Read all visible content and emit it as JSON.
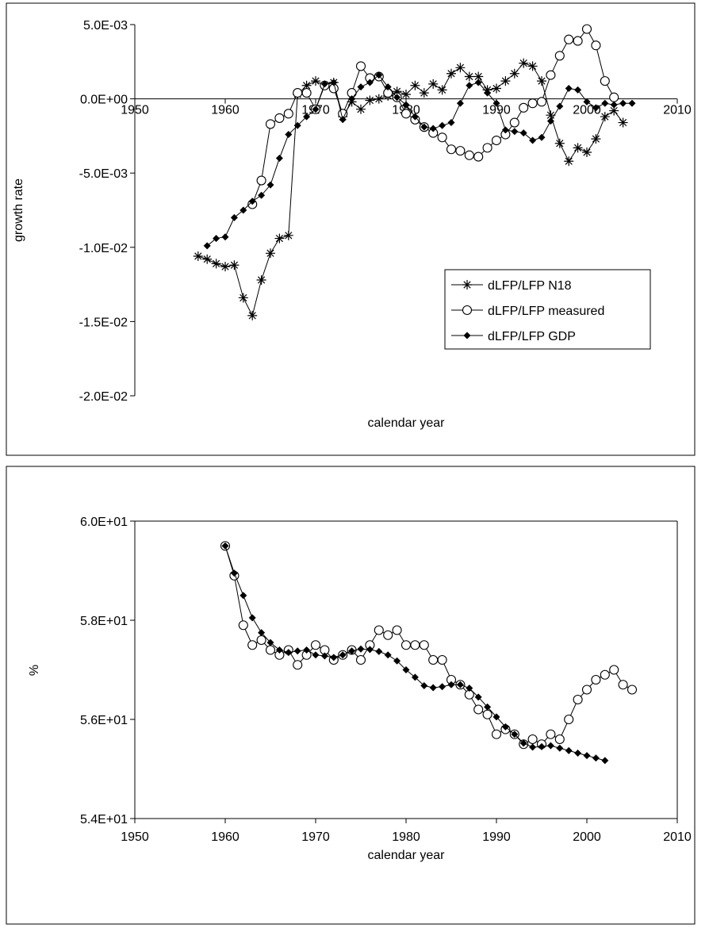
{
  "chart_data": [
    {
      "type": "line",
      "title": "",
      "xlabel": "calendar year",
      "ylabel": "growth rate",
      "xlim": [
        1950,
        2010
      ],
      "ylim": [
        -0.02,
        0.005
      ],
      "xticks": [
        "1950",
        "1960",
        "1970",
        "1980",
        "1990",
        "2000",
        "2010"
      ],
      "yticks": [
        "5.0E-03",
        "0.0E+00",
        "-5.0E-03",
        "-1.0E-02",
        "-1.5E-02",
        "-2.0E-02"
      ],
      "grid": false,
      "legend_position": "lower-right",
      "series": [
        {
          "name": "dLFP/LFP N18",
          "marker": "star",
          "x": [
            1957,
            1958,
            1959,
            1960,
            1961,
            1962,
            1963,
            1964,
            1965,
            1966,
            1967,
            1968,
            1969,
            1970,
            1971,
            1972,
            1973,
            1974,
            1975,
            1976,
            1977,
            1978,
            1979,
            1980,
            1981,
            1982,
            1983,
            1984,
            1985,
            1986,
            1987,
            1988,
            1989,
            1990,
            1991,
            1992,
            1993,
            1994,
            1995,
            1996,
            1997,
            1998,
            1999,
            2000,
            2001,
            2002,
            2003,
            2004
          ],
          "y": [
            -0.0106,
            -0.0108,
            -0.0111,
            -0.0113,
            -0.0112,
            -0.0134,
            -0.0146,
            -0.0122,
            -0.0104,
            -0.0094,
            -0.0092,
            0.0003,
            0.0009,
            0.0012,
            0.0009,
            0.0011,
            -0.0012,
            -0.0002,
            -0.0007,
            -0.0001,
            0.0,
            0.0002,
            0.0005,
            0.0003,
            0.0009,
            0.0004,
            0.001,
            0.0006,
            0.0017,
            0.0021,
            0.0015,
            0.0015,
            0.0006,
            0.0007,
            0.0012,
            0.0017,
            0.0024,
            0.0022,
            0.0012,
            -0.0011,
            -0.003,
            -0.0042,
            -0.0033,
            -0.0036,
            -0.0027,
            -0.0012,
            -0.0008,
            -0.0016
          ]
        },
        {
          "name": "dLFP/LFP measured",
          "marker": "open-circle",
          "x": [
            1963,
            1964,
            1965,
            1966,
            1967,
            1968,
            1969,
            1970,
            1971,
            1972,
            1973,
            1974,
            1975,
            1976,
            1977,
            1978,
            1979,
            1980,
            1981,
            1982,
            1983,
            1984,
            1985,
            1986,
            1987,
            1988,
            1989,
            1990,
            1991,
            1992,
            1993,
            1994,
            1995,
            1996,
            1997,
            1998,
            1999,
            2000,
            2001,
            2002,
            2003
          ],
          "y": [
            -0.0071,
            -0.0055,
            -0.0017,
            -0.0013,
            -0.001,
            0.0004,
            0.0004,
            -0.0007,
            0.0009,
            0.0007,
            -0.001,
            0.0004,
            0.0022,
            0.0014,
            0.0015,
            0.0004,
            0.0001,
            -0.001,
            -0.0014,
            -0.0019,
            -0.0023,
            -0.0026,
            -0.0034,
            -0.0035,
            -0.0038,
            -0.0039,
            -0.0033,
            -0.0028,
            -0.0024,
            -0.0016,
            -0.0006,
            -0.0003,
            -0.0002,
            0.0016,
            0.0029,
            0.004,
            0.0039,
            0.0047,
            0.0036,
            0.0012,
            0.0001
          ]
        },
        {
          "name": "dLFP/LFP GDP",
          "marker": "filled-diamond",
          "x": [
            1958,
            1959,
            1960,
            1961,
            1962,
            1963,
            1964,
            1965,
            1966,
            1967,
            1968,
            1969,
            1970,
            1971,
            1972,
            1973,
            1974,
            1975,
            1976,
            1977,
            1978,
            1979,
            1980,
            1981,
            1982,
            1983,
            1984,
            1985,
            1986,
            1987,
            1988,
            1989,
            1990,
            1991,
            1992,
            1993,
            1994,
            1995,
            1996,
            1997,
            1998,
            1999,
            2000,
            2001,
            2002,
            2003,
            2004,
            2005
          ],
          "y": [
            -0.0099,
            -0.0094,
            -0.0093,
            -0.008,
            -0.0075,
            -0.0069,
            -0.0065,
            -0.0058,
            -0.004,
            -0.0024,
            -0.0018,
            -0.0012,
            -0.0007,
            0.001,
            0.0011,
            -0.0014,
            0.0,
            0.0008,
            0.0011,
            0.0016,
            0.0008,
            0.0001,
            -0.0004,
            -0.0012,
            -0.0019,
            -0.002,
            -0.0018,
            -0.0016,
            -0.0003,
            0.0009,
            0.0011,
            0.0004,
            -0.0003,
            -0.0021,
            -0.0022,
            -0.0023,
            -0.0028,
            -0.0026,
            -0.0015,
            -0.0005,
            0.0007,
            0.0006,
            -0.0002,
            -0.0006,
            -0.0003,
            -0.0004,
            -0.0003,
            -0.0003
          ]
        }
      ]
    },
    {
      "type": "line",
      "title": "",
      "xlabel": "calendar year",
      "ylabel": "%",
      "xlim": [
        1950,
        2010
      ],
      "ylim": [
        54,
        60
      ],
      "xticks": [
        "1950",
        "1960",
        "1970",
        "1980",
        "1990",
        "2000",
        "2010"
      ],
      "yticks": [
        "6.0E+01",
        "5.8E+01",
        "5.6E+01",
        "5.4E+01"
      ],
      "grid": false,
      "legend_position": "none",
      "series": [
        {
          "marker": "open-circle",
          "x": [
            1960,
            1961,
            1962,
            1963,
            1964,
            1965,
            1966,
            1967,
            1968,
            1969,
            1970,
            1971,
            1972,
            1973,
            1974,
            1975,
            1976,
            1977,
            1978,
            1979,
            1980,
            1981,
            1982,
            1983,
            1984,
            1985,
            1986,
            1987,
            1988,
            1989,
            1990,
            1991,
            1992,
            1993,
            1994,
            1995,
            1996,
            1997,
            1998,
            1999,
            2000,
            2001,
            2002,
            2003,
            2004,
            2005
          ],
          "y": [
            59.5,
            58.9,
            57.9,
            57.5,
            57.6,
            57.4,
            57.3,
            57.4,
            57.1,
            57.3,
            57.5,
            57.4,
            57.2,
            57.3,
            57.4,
            57.2,
            57.5,
            57.8,
            57.7,
            57.8,
            57.5,
            57.5,
            57.5,
            57.2,
            57.2,
            56.8,
            56.7,
            56.5,
            56.2,
            56.1,
            55.7,
            55.8,
            55.7,
            55.5,
            55.6,
            55.5,
            55.7,
            55.6,
            56.0,
            56.4,
            56.6,
            56.8,
            56.9,
            57.0,
            56.7,
            56.6
          ]
        },
        {
          "marker": "filled-diamond",
          "x": [
            1960,
            1961,
            1962,
            1963,
            1964,
            1965,
            1966,
            1967,
            1968,
            1969,
            1970,
            1971,
            1972,
            1973,
            1974,
            1975,
            1976,
            1977,
            1978,
            1979,
            1980,
            1981,
            1982,
            1983,
            1984,
            1985,
            1986,
            1987,
            1988,
            1989,
            1990,
            1991,
            1992,
            1993,
            1994,
            1995,
            1996,
            1997,
            1998,
            1999,
            2000,
            2001,
            2002
          ],
          "y": [
            59.5,
            58.95,
            58.5,
            58.05,
            57.75,
            57.55,
            57.4,
            57.35,
            57.38,
            57.4,
            57.3,
            57.28,
            57.25,
            57.3,
            57.38,
            57.42,
            57.41,
            57.37,
            57.3,
            57.18,
            57.0,
            56.85,
            56.68,
            56.64,
            56.66,
            56.7,
            56.7,
            56.63,
            56.45,
            56.25,
            56.05,
            55.85,
            55.7,
            55.52,
            55.44,
            55.45,
            55.47,
            55.42,
            55.37,
            55.32,
            55.27,
            55.22,
            55.17
          ]
        }
      ]
    }
  ]
}
